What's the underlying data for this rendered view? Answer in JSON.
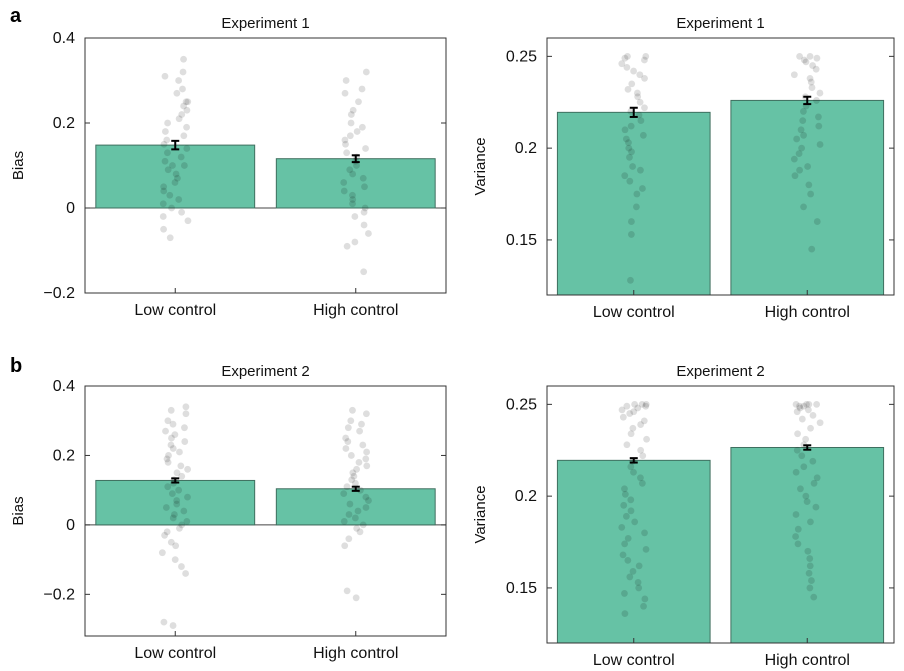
{
  "figure": {
    "panel_labels": [
      "a",
      "b"
    ],
    "bar_color": "#66c2a5",
    "bar_edge_color": "#3f6f5f",
    "point_color": "#000000"
  },
  "chart_data": [
    {
      "type": "bar",
      "panel": "a",
      "title": "Experiment 1",
      "xlabel": "",
      "ylabel": "Bias",
      "ylim": [
        -0.2,
        0.4
      ],
      "yticks": [
        -0.2,
        0,
        0.2,
        0.4
      ],
      "ytick_labels": [
        "−0.2",
        "0",
        "0.2",
        "0.4"
      ],
      "categories": [
        "Low control",
        "High control"
      ],
      "values": [
        0.148,
        0.116
      ],
      "errors": [
        0.01,
        0.008
      ],
      "points": [
        [
          0.35,
          0.31,
          0.32,
          0.3,
          0.28,
          0.27,
          0.25,
          0.25,
          0.24,
          0.23,
          0.22,
          0.21,
          0.2,
          0.19,
          0.18,
          0.17,
          0.16,
          0.15,
          0.14,
          0.13,
          0.12,
          0.11,
          0.1,
          0.1,
          0.09,
          0.08,
          0.07,
          0.06,
          0.05,
          0.04,
          0.03,
          0.02,
          0.01,
          0.0,
          -0.01,
          -0.02,
          -0.03,
          -0.05,
          -0.07
        ],
        [
          0.32,
          0.3,
          0.28,
          0.27,
          0.25,
          0.23,
          0.22,
          0.2,
          0.19,
          0.18,
          0.17,
          0.16,
          0.15,
          0.14,
          0.13,
          0.12,
          0.11,
          0.1,
          0.09,
          0.08,
          0.07,
          0.06,
          0.05,
          0.04,
          0.03,
          0.02,
          0.01,
          0.0,
          -0.01,
          -0.02,
          -0.04,
          -0.06,
          -0.08,
          -0.09,
          -0.15
        ]
      ]
    },
    {
      "type": "bar",
      "panel": "a",
      "title": "Experiment 1",
      "xlabel": "",
      "ylabel": "Variance",
      "ylim": [
        0.12,
        0.26
      ],
      "yticks": [
        0.15,
        0.2,
        0.25
      ],
      "ytick_labels": [
        "0.15",
        "0.2",
        "0.25"
      ],
      "categories": [
        "Low control",
        "High control"
      ],
      "values": [
        0.2195,
        0.226
      ],
      "errors": [
        0.0025,
        0.002
      ],
      "points": [
        [
          0.25,
          0.25,
          0.249,
          0.248,
          0.246,
          0.244,
          0.242,
          0.24,
          0.238,
          0.235,
          0.232,
          0.23,
          0.228,
          0.225,
          0.222,
          0.22,
          0.218,
          0.215,
          0.212,
          0.21,
          0.207,
          0.205,
          0.203,
          0.2,
          0.198,
          0.195,
          0.19,
          0.188,
          0.185,
          0.182,
          0.178,
          0.175,
          0.168,
          0.16,
          0.153,
          0.128
        ],
        [
          0.25,
          0.25,
          0.249,
          0.248,
          0.247,
          0.245,
          0.243,
          0.24,
          0.238,
          0.236,
          0.233,
          0.23,
          0.228,
          0.226,
          0.223,
          0.22,
          0.217,
          0.215,
          0.212,
          0.21,
          0.207,
          0.205,
          0.202,
          0.2,
          0.197,
          0.194,
          0.19,
          0.188,
          0.185,
          0.18,
          0.175,
          0.168,
          0.16,
          0.145
        ]
      ]
    },
    {
      "type": "bar",
      "panel": "b",
      "title": "Experiment 2",
      "xlabel": "",
      "ylabel": "Bias",
      "ylim": [
        -0.32,
        0.4
      ],
      "yticks": [
        -0.2,
        0,
        0.2,
        0.4
      ],
      "ytick_labels": [
        "−0.2",
        "0",
        "0.2",
        "0.4"
      ],
      "categories": [
        "Low control",
        "High control"
      ],
      "values": [
        0.128,
        0.104
      ],
      "errors": [
        0.006,
        0.006
      ],
      "points": [
        [
          0.34,
          0.33,
          0.32,
          0.3,
          0.29,
          0.28,
          0.27,
          0.26,
          0.25,
          0.24,
          0.23,
          0.22,
          0.21,
          0.2,
          0.19,
          0.18,
          0.17,
          0.16,
          0.15,
          0.14,
          0.13,
          0.12,
          0.11,
          0.1,
          0.09,
          0.08,
          0.07,
          0.06,
          0.05,
          0.04,
          0.03,
          0.02,
          0.01,
          0.0,
          -0.01,
          -0.02,
          -0.03,
          -0.05,
          -0.06,
          -0.08,
          -0.1,
          -0.12,
          -0.14,
          -0.28,
          -0.29
        ],
        [
          0.33,
          0.32,
          0.3,
          0.29,
          0.28,
          0.27,
          0.25,
          0.24,
          0.23,
          0.22,
          0.21,
          0.2,
          0.19,
          0.18,
          0.17,
          0.16,
          0.15,
          0.14,
          0.13,
          0.12,
          0.11,
          0.1,
          0.09,
          0.08,
          0.07,
          0.06,
          0.05,
          0.04,
          0.03,
          0.02,
          0.01,
          0.0,
          -0.01,
          -0.02,
          -0.04,
          -0.06,
          -0.19,
          -0.21
        ]
      ]
    },
    {
      "type": "bar",
      "panel": "b",
      "title": "Experiment 2",
      "xlabel": "",
      "ylabel": "Variance",
      "ylim": [
        0.12,
        0.26
      ],
      "yticks": [
        0.15,
        0.2,
        0.25
      ],
      "ytick_labels": [
        "0.15",
        "0.2",
        "0.25"
      ],
      "categories": [
        "Low control",
        "High control"
      ],
      "values": [
        0.2195,
        0.2265
      ],
      "errors": [
        0.0012,
        0.0012
      ],
      "points": [
        [
          0.25,
          0.25,
          0.25,
          0.249,
          0.249,
          0.248,
          0.247,
          0.246,
          0.245,
          0.243,
          0.241,
          0.239,
          0.237,
          0.234,
          0.231,
          0.228,
          0.225,
          0.222,
          0.219,
          0.216,
          0.213,
          0.21,
          0.207,
          0.204,
          0.201,
          0.198,
          0.195,
          0.192,
          0.189,
          0.186,
          0.183,
          0.18,
          0.177,
          0.174,
          0.171,
          0.168,
          0.165,
          0.162,
          0.159,
          0.156,
          0.153,
          0.15,
          0.147,
          0.144,
          0.14,
          0.136
        ],
        [
          0.25,
          0.25,
          0.25,
          0.25,
          0.249,
          0.249,
          0.248,
          0.247,
          0.246,
          0.244,
          0.242,
          0.24,
          0.237,
          0.234,
          0.231,
          0.228,
          0.225,
          0.222,
          0.219,
          0.216,
          0.213,
          0.21,
          0.207,
          0.204,
          0.2,
          0.197,
          0.194,
          0.19,
          0.186,
          0.182,
          0.178,
          0.174,
          0.17,
          0.166,
          0.162,
          0.158,
          0.154,
          0.15,
          0.145
        ]
      ]
    }
  ]
}
